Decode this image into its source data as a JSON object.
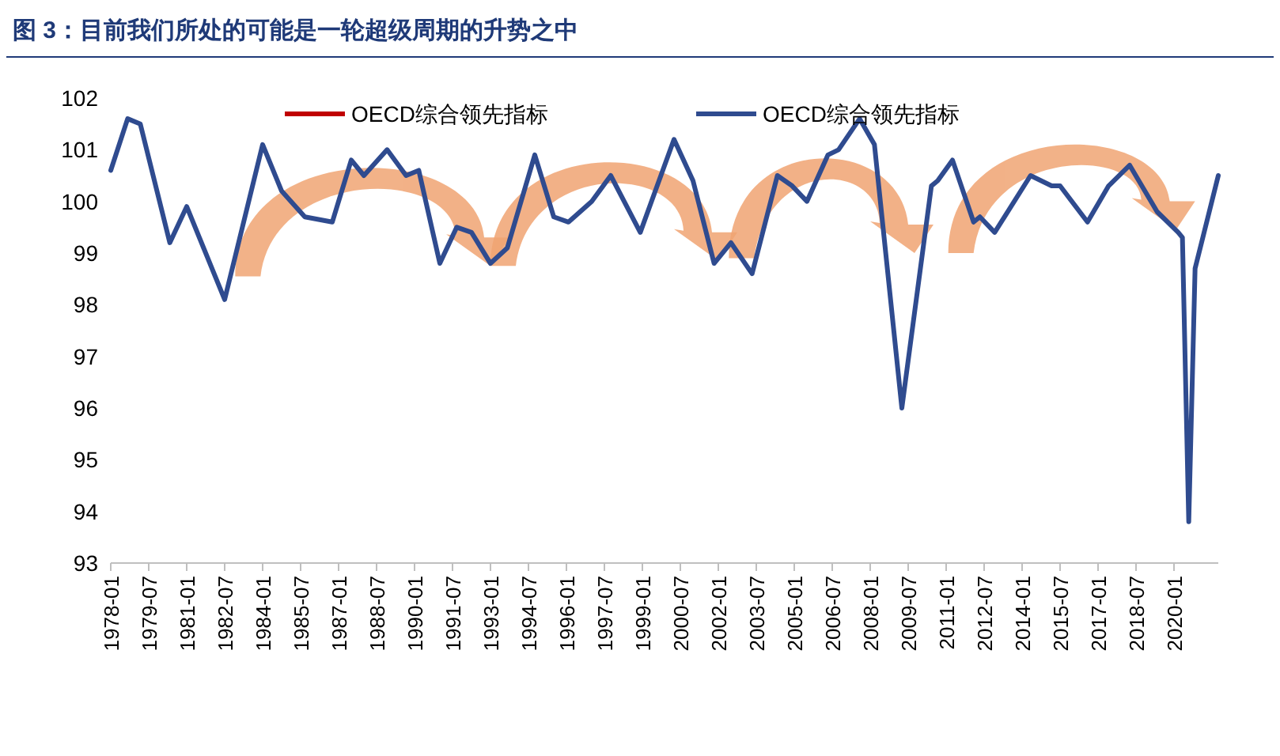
{
  "chart_data": {
    "type": "line",
    "title": "图 3：目前我们所处的可能是一轮超级周期的升势之中",
    "x": [
      "1978-01",
      "1978-09",
      "1979-03",
      "1980-05",
      "1981-01",
      "1982-07",
      "1984-01",
      "1984-10",
      "1985-09",
      "1986-10",
      "1987-07",
      "1988-01",
      "1988-12",
      "1989-09",
      "1990-03",
      "1991-01",
      "1991-09",
      "1992-04",
      "1993-01",
      "1993-09",
      "1994-10",
      "1995-07",
      "1996-02",
      "1997-01",
      "1997-10",
      "1998-12",
      "2000-04",
      "2001-01",
      "2001-11",
      "2002-07",
      "2003-05",
      "2004-05",
      "2004-12",
      "2005-07",
      "2006-05",
      "2006-10",
      "2007-08",
      "2008-03",
      "2009-04",
      "2010-06",
      "2010-09",
      "2011-04",
      "2012-02",
      "2012-05",
      "2012-12",
      "2014-05",
      "2015-03",
      "2015-07",
      "2016-08",
      "2017-06",
      "2018-04",
      "2019-05",
      "2020-03",
      "2020-05",
      "2020-08",
      "2020-11",
      "2021-10"
    ],
    "series": [
      {
        "name": "OECD综合领先指标",
        "color": "#c00000",
        "values": [
          null,
          null,
          null,
          null,
          null,
          null,
          null,
          null,
          null,
          null,
          null,
          null,
          null,
          null,
          null,
          null,
          null,
          null,
          null,
          null,
          null,
          null,
          null,
          null,
          null,
          null,
          null,
          null,
          null,
          null,
          null,
          null,
          null,
          null,
          null,
          null,
          null,
          null,
          null,
          null,
          null,
          null,
          null,
          null,
          null,
          null,
          null,
          null,
          null,
          null,
          null,
          null,
          null,
          null,
          null,
          null,
          null
        ]
      },
      {
        "name": "OECD综合领先指标",
        "color": "#2f4b8f",
        "values": [
          100.6,
          101.6,
          101.5,
          99.2,
          99.9,
          98.1,
          101.1,
          100.2,
          99.7,
          99.6,
          100.8,
          100.5,
          101.0,
          100.5,
          100.6,
          98.8,
          99.5,
          99.4,
          98.8,
          99.1,
          100.9,
          99.7,
          99.6,
          100.0,
          100.5,
          99.4,
          101.2,
          100.4,
          98.8,
          99.2,
          98.6,
          100.5,
          100.3,
          100.0,
          100.9,
          101.0,
          101.6,
          101.1,
          96.0,
          100.3,
          100.4,
          100.8,
          99.6,
          99.7,
          99.4,
          100.5,
          100.3,
          100.3,
          99.6,
          100.3,
          100.7,
          99.8,
          99.4,
          99.3,
          93.8,
          98.7,
          100.5
        ]
      }
    ],
    "xlim": [
      "1978-01",
      "2021-10"
    ],
    "xticks": [
      "1978-01",
      "1979-07",
      "1981-01",
      "1982-07",
      "1984-01",
      "1985-07",
      "1987-01",
      "1988-07",
      "1990-01",
      "1991-07",
      "1993-01",
      "1994-07",
      "1996-01",
      "1997-07",
      "1999-01",
      "2000-07",
      "2002-01",
      "2003-07",
      "2005-01",
      "2006-07",
      "2008-01",
      "2009-07",
      "2011-01",
      "2012-07",
      "2014-01",
      "2015-07",
      "2017-01",
      "2018-07",
      "2020-01"
    ],
    "ylim": [
      93,
      102
    ],
    "yticks": [
      93,
      94,
      95,
      96,
      97,
      98,
      99,
      100,
      101,
      102
    ],
    "legend": "top",
    "grid": false
  }
}
